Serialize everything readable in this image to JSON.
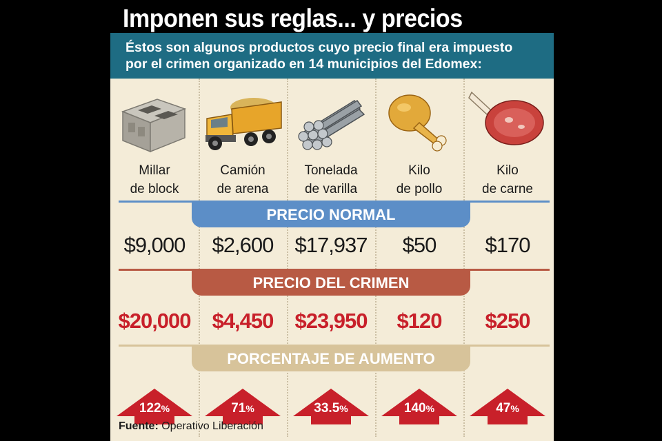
{
  "title": "Imponen sus reglas... y precios",
  "subtitle": {
    "line1": "Éstos son algunos productos cuyo precio final era impuesto",
    "line2": "por el crimen organizado en 14 municipios del Edomex:"
  },
  "bands": {
    "normal": "PRECIO NORMAL",
    "crime": "PRECIO DEL CRIMEN",
    "pct": "PORCENTAJE DE AUMENTO"
  },
  "products": [
    {
      "icon": "concrete-block-icon",
      "name_line1": "Millar",
      "name_line2": "de block",
      "normal_price": "$9,000",
      "crime_price": "$20,000",
      "increase": "122",
      "pct_symbol": "%"
    },
    {
      "icon": "dump-truck-icon",
      "name_line1": "Camión",
      "name_line2": "de arena",
      "normal_price": "$2,600",
      "crime_price": "$4,450",
      "increase": "71",
      "pct_symbol": "%"
    },
    {
      "icon": "rebar-stack-icon",
      "name_line1": "Tonelada",
      "name_line2": "de varilla",
      "normal_price": "$17,937",
      "crime_price": "$23,950",
      "increase": "33.5",
      "pct_symbol": "%"
    },
    {
      "icon": "chicken-leg-icon",
      "name_line1": "Kilo",
      "name_line2": "de pollo",
      "normal_price": "$50",
      "crime_price": "$120",
      "increase": "140",
      "pct_symbol": "%"
    },
    {
      "icon": "steak-icon",
      "name_line1": "Kilo",
      "name_line2": "de carne",
      "normal_price": "$170",
      "crime_price": "$250",
      "increase": "47",
      "pct_symbol": "%"
    }
  ],
  "source": {
    "label": "Fuente:",
    "text": "Operativo Liberación"
  },
  "colors": {
    "header_bg": "#1e6c83",
    "normal_band": "#5c8ec7",
    "crime_band": "#b85a44",
    "pct_band": "#d7c39a",
    "crime_price": "#c8202a",
    "arrow": "#c8202a"
  }
}
